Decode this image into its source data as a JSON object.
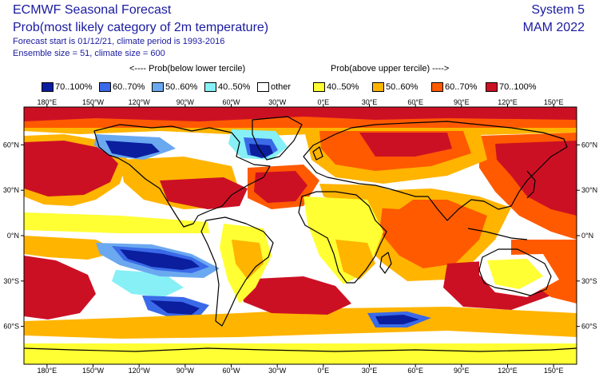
{
  "header": {
    "title_line1": "ECMWF Seasonal Forecast",
    "title_line2": "Prob(most likely category of 2m temperature)",
    "forecast_info": "Forecast start is 01/12/21, climate period is 1993-2016",
    "ensemble_info": "Ensemble size = 51, climate size = 600",
    "system": "System 5",
    "season": "MAM 2022"
  },
  "legend": {
    "below_label": "<---- Prob(below lower tercile)",
    "above_label": "Prob(above upper tercile) ---->",
    "items": [
      {
        "label": "70..100%",
        "color": "#0a1e9e"
      },
      {
        "label": "60..70%",
        "color": "#3a6ae8"
      },
      {
        "label": "50..60%",
        "color": "#6aa8f0"
      },
      {
        "label": "40..50%",
        "color": "#86f0f6"
      },
      {
        "label": "other",
        "color": "#ffffff"
      },
      {
        "label": "40..50%",
        "color": "#ffff33"
      },
      {
        "label": "50..60%",
        "color": "#ffb400"
      },
      {
        "label": "60..70%",
        "color": "#ff5a00"
      },
      {
        "label": "70..100%",
        "color": "#cc1024"
      }
    ]
  },
  "map": {
    "lon_labels": [
      "180°E",
      "150°W",
      "120°W",
      "90°W",
      "60°W",
      "30°W",
      "0°E",
      "30°E",
      "60°E",
      "90°E",
      "120°E",
      "150°E"
    ],
    "lat_labels": [
      "60°N",
      "30°N",
      "0°N",
      "30°S",
      "60°S"
    ]
  }
}
